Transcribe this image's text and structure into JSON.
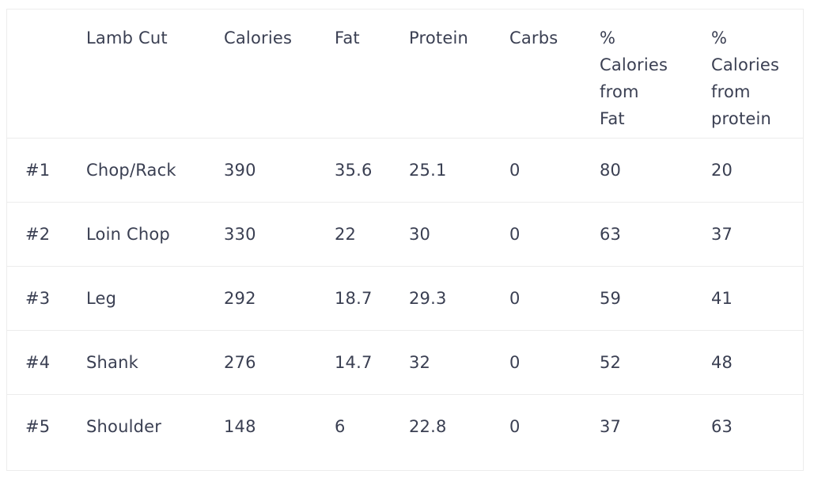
{
  "table": {
    "headers": {
      "rank": "",
      "cut": "Lamb Cut",
      "calories": "Calories",
      "fat": "Fat",
      "protein": "Protein",
      "carbs": "Carbs",
      "pct_fat_lines": [
        "%",
        "Calories",
        "from",
        "Fat"
      ],
      "pct_protein_lines": [
        "%",
        "Calories",
        "from",
        "protein"
      ]
    },
    "rows": [
      {
        "rank": "#1",
        "cut": "Chop/Rack",
        "calories": "390",
        "fat": "35.6",
        "protein": "25.1",
        "carbs": "0",
        "pct_fat": "80",
        "pct_protein": "20"
      },
      {
        "rank": "#2",
        "cut": "Loin Chop",
        "calories": "330",
        "fat": "22",
        "protein": "30",
        "carbs": "0",
        "pct_fat": "63",
        "pct_protein": "37"
      },
      {
        "rank": "#3",
        "cut": "Leg",
        "calories": "292",
        "fat": "18.7",
        "protein": "29.3",
        "carbs": "0",
        "pct_fat": "59",
        "pct_protein": "41"
      },
      {
        "rank": "#4",
        "cut": "Shank",
        "calories": "276",
        "fat": "14.7",
        "protein": "32",
        "carbs": "0",
        "pct_fat": "52",
        "pct_protein": "48"
      },
      {
        "rank": "#5",
        "cut": "Shoulder",
        "calories": "148",
        "fat": "6",
        "protein": "22.8",
        "carbs": "0",
        "pct_fat": "37",
        "pct_protein": "63"
      }
    ]
  }
}
